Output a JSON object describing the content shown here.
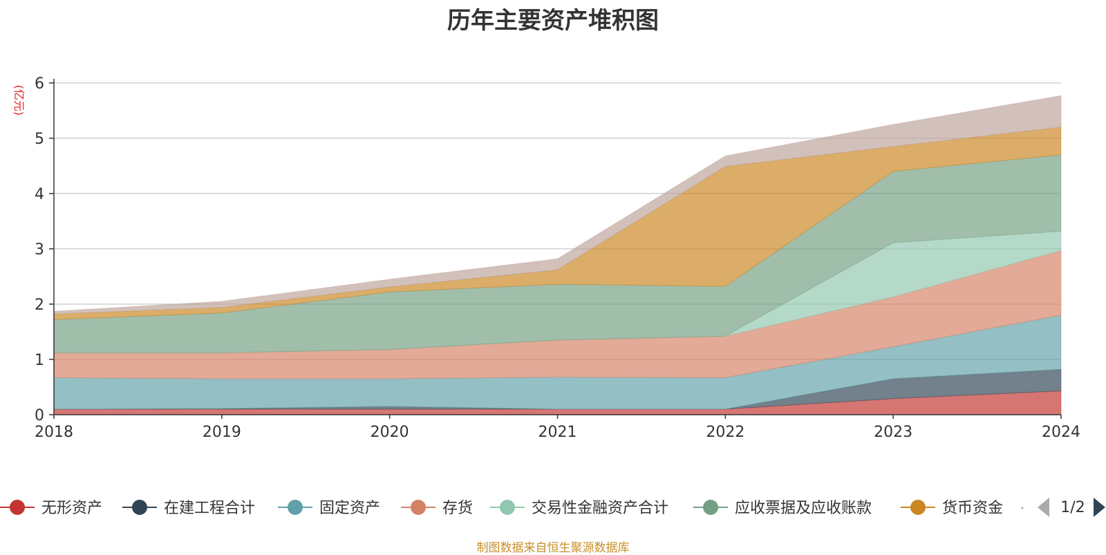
{
  "chart_data": {
    "type": "area",
    "stacked": true,
    "title": "历年主要资产堆积图",
    "ylabel": "(亿元)",
    "xlabel": "",
    "categories": [
      "2018",
      "2019",
      "2020",
      "2021",
      "2022",
      "2023",
      "2024"
    ],
    "yticks": [
      "0",
      "1",
      "2",
      "3",
      "4",
      "5",
      "6"
    ],
    "ylim": [
      0,
      6
    ],
    "grid": true,
    "legend_position": "bottom",
    "series": [
      {
        "name": "无形资产",
        "color": "#c23531",
        "values": [
          0.1,
          0.1,
          0.1,
          0.1,
          0.1,
          0.29,
          0.43
        ]
      },
      {
        "name": "在建工程合计",
        "color": "#2f4554",
        "values": [
          0.0,
          0.01,
          0.05,
          0.0,
          0.0,
          0.36,
          0.39
        ]
      },
      {
        "name": "固定资产",
        "color": "#61a0a8",
        "values": [
          0.57,
          0.54,
          0.5,
          0.58,
          0.57,
          0.58,
          0.98
        ]
      },
      {
        "name": "存货",
        "color": "#d48265",
        "values": [
          0.45,
          0.47,
          0.53,
          0.67,
          0.75,
          0.9,
          1.17
        ]
      },
      {
        "name": "交易性金融资产合计",
        "color": "#91c7ae",
        "values": [
          0.0,
          0.0,
          0.0,
          0.0,
          0.0,
          0.98,
          0.35
        ]
      },
      {
        "name": "应收票据及应收账款",
        "color": "#749f83",
        "values": [
          0.6,
          0.72,
          1.04,
          1.01,
          0.9,
          1.29,
          1.38
        ]
      },
      {
        "name": "货币资金",
        "color": "#ca8622",
        "values": [
          0.1,
          0.1,
          0.09,
          0.26,
          2.17,
          0.45,
          0.5
        ]
      },
      {
        "name": "",
        "color": "#bda29a",
        "values": [
          0.05,
          0.11,
          0.14,
          0.2,
          0.19,
          0.4,
          0.57
        ]
      }
    ]
  },
  "legend": {
    "page_indicator": "1/2",
    "visible_count": 7
  },
  "footer": "制图数据来自恒生聚源数据库"
}
